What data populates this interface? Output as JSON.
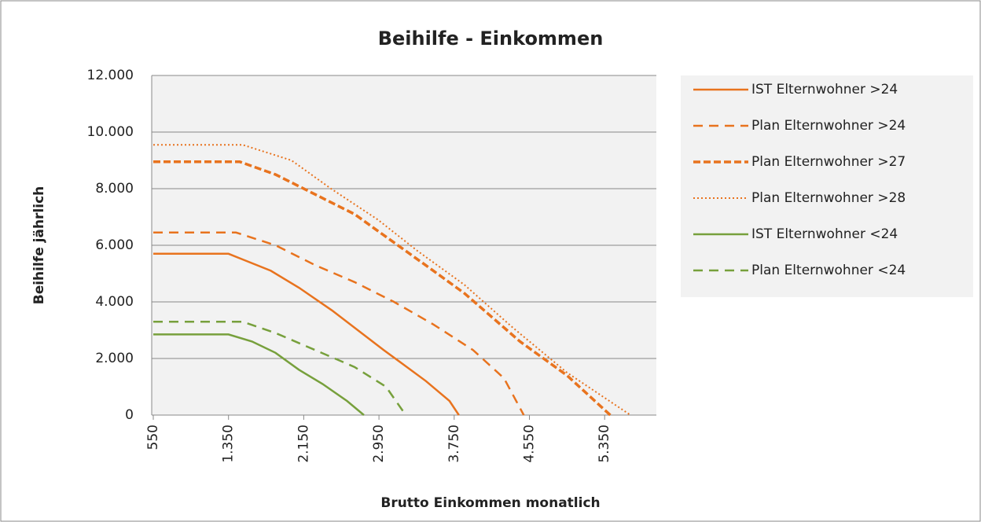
{
  "chart_data": {
    "type": "line",
    "title": "Beihilfe -   Einkommen",
    "x_label": "Brutto Einkommen monatlich",
    "y_label": "Beihilfe jährlich",
    "xlim": [
      550,
      5900
    ],
    "ylim": [
      0,
      12000
    ],
    "xticks": [
      550,
      {
        "value": 1350,
        "label": "1.350"
      },
      {
        "value": 2150,
        "label": "2.150"
      },
      {
        "value": 2950,
        "label": "2.950"
      },
      {
        "value": 3750,
        "label": "3.750"
      },
      {
        "value": 4550,
        "label": "4.550"
      },
      {
        "value": 5350,
        "label": "5.350"
      }
    ],
    "yticks": [
      0,
      {
        "value": 2000,
        "label": "2.000"
      },
      {
        "value": 4000,
        "label": "4.000"
      },
      {
        "value": 6000,
        "label": "6.000"
      },
      {
        "value": 8000,
        "label": "8.000"
      },
      {
        "value": 10000,
        "label": "10.000"
      },
      {
        "value": 12000,
        "label": "12.000"
      }
    ],
    "grid": true,
    "legend": "right",
    "series": [
      {
        "name": "IST Elternwohner >24",
        "color": "#e8731e",
        "style": "solid",
        "x": [
          550,
          1350,
          1500,
          1800,
          2100,
          2450,
          3000,
          3450,
          3700,
          3800
        ],
        "values": [
          5700,
          5700,
          5500,
          5100,
          4500,
          3700,
          2300,
          1200,
          500,
          0
        ]
      },
      {
        "name": "Plan Elternwohner >24",
        "color": "#e8731e",
        "style": "dashed",
        "x": [
          550,
          1430,
          1850,
          2270,
          2690,
          3110,
          3530,
          3950,
          4280,
          4490
        ],
        "values": [
          6450,
          6450,
          6000,
          5300,
          4700,
          4000,
          3200,
          2300,
          1300,
          0
        ]
      },
      {
        "name": "Plan Elternwohner >27",
        "color": "#e8731e",
        "style": "bold-dashed",
        "x": [
          550,
          1470,
          1850,
          2270,
          2690,
          3025,
          3445,
          3860,
          4450,
          4950,
          5410
        ],
        "values": [
          8950,
          8950,
          8500,
          7800,
          7100,
          6300,
          5300,
          4300,
          2600,
          1400,
          0
        ]
      },
      {
        "name": "Plan Elternwohner >28",
        "color": "#e8731e",
        "style": "dotted",
        "x": [
          550,
          1500,
          2020,
          2440,
          2940,
          3360,
          3860,
          4370,
          4950,
          5625
        ],
        "values": [
          9550,
          9550,
          9000,
          8000,
          6900,
          5800,
          4600,
          3100,
          1500,
          0
        ]
      },
      {
        "name": "IST Elternwohner <24",
        "color": "#77a03c",
        "style": "solid",
        "x": [
          550,
          1350,
          1600,
          1850,
          2100,
          2350,
          2610,
          2790
        ],
        "values": [
          2850,
          2850,
          2600,
          2200,
          1600,
          1100,
          500,
          0
        ]
      },
      {
        "name": "Plan Elternwohner <24",
        "color": "#77a03c",
        "style": "dashed",
        "x": [
          550,
          1500,
          1850,
          2270,
          2690,
          3025,
          3235
        ],
        "values": [
          3300,
          3300,
          2900,
          2300,
          1700,
          1000,
          0
        ]
      }
    ]
  }
}
